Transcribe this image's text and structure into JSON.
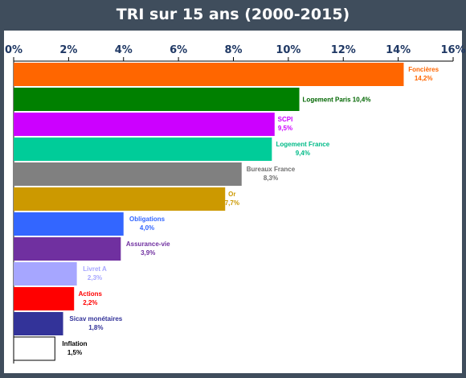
{
  "title": "TRI sur 15 ans (2000-2015)",
  "colors": {
    "header_bg": "#3f4d5c",
    "panel_bg": "#ffffff"
  },
  "chart_data": {
    "type": "bar",
    "orientation": "horizontal",
    "title": "TRI sur 15 ans (2000-2015)",
    "xlim": [
      0,
      16
    ],
    "xticks": [
      0,
      2,
      4,
      6,
      8,
      10,
      12,
      14,
      16
    ],
    "xtick_labels": [
      "0%",
      "2%",
      "4%",
      "6%",
      "8%",
      "10%",
      "12%",
      "14%",
      "16%"
    ],
    "axis_position": "top",
    "grid": false,
    "legend": "none",
    "categories": [
      "Foncières",
      "Logement Paris",
      "SCPI",
      "Logement France",
      "Bureaux France",
      "Or",
      "Obligations",
      "Assurance-vie",
      "Livret A",
      "Actions",
      "Sicav monétaires",
      "Inflation"
    ],
    "values": [
      14.2,
      10.4,
      9.5,
      9.4,
      8.3,
      7.7,
      4.0,
      3.9,
      2.3,
      2.2,
      1.8,
      1.5
    ],
    "value_labels": [
      "14,2%",
      "10,4%",
      "9,5%",
      "9,4%",
      "8,3%",
      "7,7%",
      "4,0%",
      "3,9%",
      "2,3%",
      "2,2%",
      "1,8%",
      "1,5%"
    ],
    "bar_colors": [
      "#ff6600",
      "#008000",
      "#cc00ff",
      "#00cc99",
      "#808080",
      "#cc9900",
      "#3366ff",
      "#7030a0",
      "#a6a6ff",
      "#ff0000",
      "#333399",
      "#ffffff"
    ],
    "label_colors": [
      "#ff6600",
      "#006600",
      "#cc00ff",
      "#00bb88",
      "#707070",
      "#cc9900",
      "#3366ff",
      "#7030a0",
      "#a6a6ff",
      "#ff0000",
      "#333399",
      "#000000"
    ],
    "inline_label": [
      false,
      true,
      false,
      false,
      false,
      false,
      false,
      false,
      false,
      false,
      false,
      false
    ]
  }
}
